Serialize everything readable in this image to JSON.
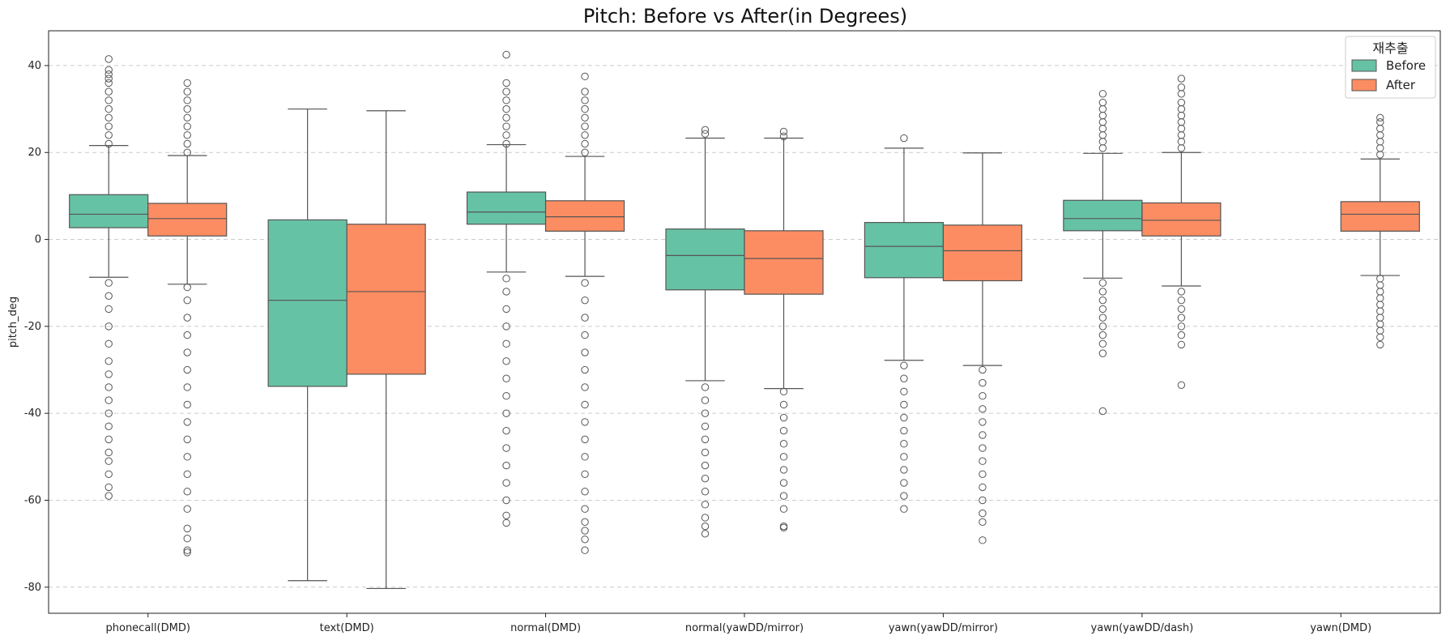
{
  "chart_data": {
    "type": "box",
    "title": "Pitch: Before vs After(in Degrees)",
    "xlabel": "",
    "ylabel": "pitch_deg",
    "ylim": [
      -86,
      48
    ],
    "yticks": [
      40,
      20,
      0,
      -20,
      -40,
      -60,
      -80
    ],
    "grid": "horizontal dashed",
    "legend": {
      "title": "재추출",
      "position": "top-right",
      "entries": [
        "Before",
        "After"
      ]
    },
    "colors": {
      "Before": "#66c2a5",
      "After": "#fc8d62",
      "line": "#555555",
      "grid": "#cccccc"
    },
    "categories": [
      "phonecall(DMD)",
      "text(DMD)",
      "normal(DMD)",
      "normal(yawDD/mirror)",
      "yawn(yawDD/mirror)",
      "yawn(yawDD/dash)",
      "yawn(DMD)"
    ],
    "series": [
      {
        "name": "Before",
        "boxes": [
          {
            "whisker_low": -8.7,
            "q1": 2.7,
            "median": 5.8,
            "q3": 10.3,
            "whisker_high": 21.6,
            "outliers_high": [
              22,
              24,
              26,
              28,
              30,
              32,
              34,
              36,
              37,
              38,
              39,
              41.5
            ],
            "outliers_low": [
              -10,
              -13,
              -16,
              -20,
              -24,
              -28,
              -31,
              -34,
              -37,
              -40,
              -43,
              -46,
              -49,
              -51,
              -54,
              -57,
              -59
            ]
          },
          {
            "whisker_low": -78.5,
            "q1": -33.8,
            "median": -14,
            "q3": 4.5,
            "whisker_high": 30,
            "outliers_high": [],
            "outliers_low": []
          },
          {
            "whisker_low": -7.5,
            "q1": 3.5,
            "median": 6.3,
            "q3": 10.9,
            "whisker_high": 21.8,
            "outliers_high": [
              22,
              24,
              26,
              28,
              30,
              32,
              34,
              36,
              42.5
            ],
            "outliers_low": [
              -9,
              -12,
              -16,
              -20,
              -24,
              -28,
              -32,
              -36,
              -40,
              -44,
              -48,
              -52,
              -56,
              -60,
              -63.5,
              -65.2
            ]
          },
          {
            "whisker_low": -32.5,
            "q1": -11.6,
            "median": -3.7,
            "q3": 2.4,
            "whisker_high": 23.3,
            "outliers_high": [
              24.3,
              25.2
            ],
            "outliers_low": [
              -34,
              -37,
              -40,
              -43,
              -46,
              -49,
              -52,
              -55,
              -58,
              -61,
              -64,
              -66,
              -67.7
            ]
          },
          {
            "whisker_low": -27.8,
            "q1": -8.8,
            "median": -1.6,
            "q3": 3.9,
            "whisker_high": 21,
            "outliers_high": [
              23.3
            ],
            "outliers_low": [
              -29,
              -32,
              -35,
              -38,
              -41,
              -44,
              -47,
              -50,
              -53,
              -56,
              -59,
              -62
            ]
          },
          {
            "whisker_low": -8.9,
            "q1": 2,
            "median": 4.8,
            "q3": 9,
            "whisker_high": 19.8,
            "outliers_high": [
              21,
              22.5,
              24,
              25.5,
              27,
              28.5,
              30,
              31.5,
              33.5
            ],
            "outliers_low": [
              -10,
              -12,
              -14,
              -16,
              -18,
              -20,
              -22,
              -24,
              -26.2,
              -39.5
            ]
          },
          null
        ]
      },
      {
        "name": "After",
        "boxes": [
          {
            "whisker_low": -10.3,
            "q1": 0.8,
            "median": 4.8,
            "q3": 8.3,
            "whisker_high": 19.3,
            "outliers_high": [
              20,
              22,
              24,
              26,
              28,
              30,
              32,
              34,
              36
            ],
            "outliers_low": [
              -11,
              -14,
              -18,
              -22,
              -26,
              -30,
              -34,
              -38,
              -42,
              -46,
              -50,
              -54,
              -58,
              -62,
              -66.5,
              -68.8,
              -71.5,
              -72
            ]
          },
          {
            "whisker_low": -80.3,
            "q1": -31,
            "median": -12,
            "q3": 3.5,
            "whisker_high": 29.6,
            "outliers_high": [],
            "outliers_low": []
          },
          {
            "whisker_low": -8.5,
            "q1": 1.9,
            "median": 5.2,
            "q3": 8.9,
            "whisker_high": 19.1,
            "outliers_high": [
              20,
              22,
              24,
              26,
              28,
              30,
              32,
              34,
              37.5
            ],
            "outliers_low": [
              -10,
              -14,
              -18,
              -22,
              -26,
              -30,
              -34,
              -38,
              -42,
              -46,
              -50,
              -54,
              -58,
              -62,
              -65,
              -67,
              -69,
              -71.5
            ]
          },
          {
            "whisker_low": -34.3,
            "q1": -12.6,
            "median": -4.4,
            "q3": 2,
            "whisker_high": 23.3,
            "outliers_high": [
              23.7,
              24.8
            ],
            "outliers_low": [
              -35,
              -38,
              -41,
              -44,
              -47,
              -50,
              -53,
              -56,
              -59,
              -62,
              -66,
              -66.3
            ]
          },
          {
            "whisker_low": -29,
            "q1": -9.5,
            "median": -2.6,
            "q3": 3.3,
            "whisker_high": 19.9,
            "outliers_high": [],
            "outliers_low": [
              -30,
              -33,
              -36,
              -39,
              -42,
              -45,
              -48,
              -51,
              -54,
              -57,
              -60,
              -63,
              -65,
              -69.2
            ]
          },
          {
            "whisker_low": -10.7,
            "q1": 0.8,
            "median": 4.4,
            "q3": 8.4,
            "whisker_high": 20,
            "outliers_high": [
              21,
              22.5,
              24,
              25.5,
              27,
              28.5,
              30,
              31.5,
              33.5,
              35,
              37
            ],
            "outliers_low": [
              -12,
              -14,
              -16,
              -18,
              -20,
              -22,
              -24.2,
              -33.5
            ]
          },
          {
            "whisker_low": -8.3,
            "q1": 1.9,
            "median": 5.8,
            "q3": 8.7,
            "whisker_high": 18.5,
            "outliers_high": [
              19.5,
              21,
              22.5,
              24,
              25.5,
              27,
              28
            ],
            "outliers_low": [
              -9,
              -10.5,
              -12,
              -13.5,
              -15,
              -16.5,
              -18,
              -19.5,
              -21,
              -22.5,
              -24.2
            ]
          }
        ]
      }
    ]
  }
}
